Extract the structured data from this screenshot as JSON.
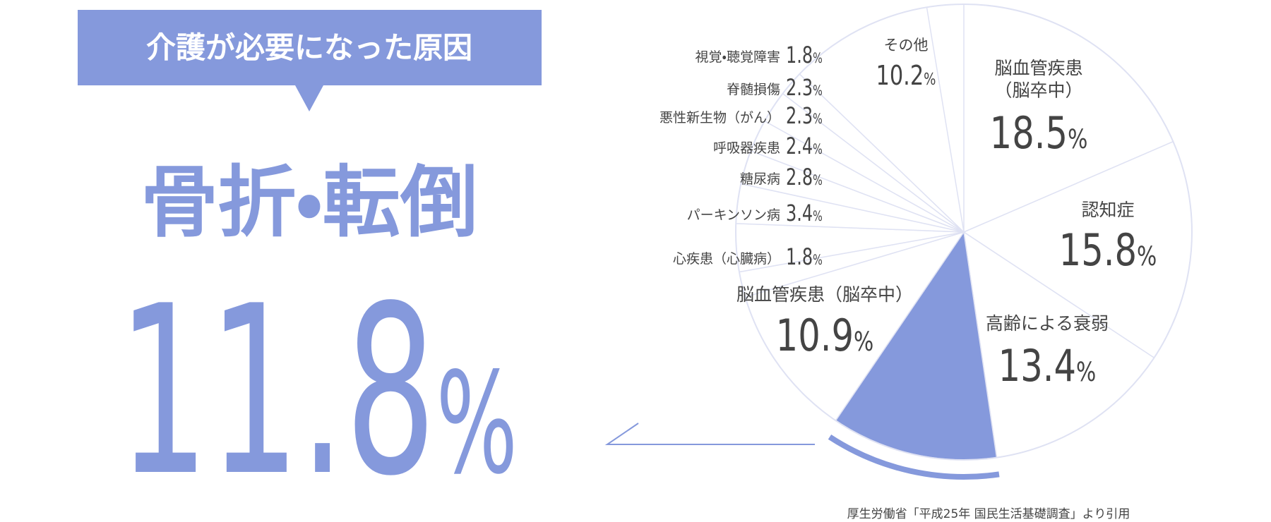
{
  "chart_data": {
    "type": "pie",
    "title": "介護が必要になった原因",
    "source": "厚生労働省「平成25年 国民生活基礎調査」より引用",
    "categories": [
      "脳血管疾患（脳卒中）",
      "認知症",
      "高齢による衰弱",
      "骨折・転倒",
      "脳血管疾患（脳卒中）",
      "心疾患（心臓病）",
      "パーキンソン病",
      "糖尿病",
      "呼吸器疾患",
      "悪性新生物（がん）",
      "脊髄損傷",
      "視覚・聴覚障害",
      "その他"
    ],
    "values": [
      18.5,
      15.8,
      13.4,
      11.8,
      10.9,
      1.8,
      3.4,
      2.8,
      2.4,
      2.3,
      2.3,
      1.8,
      10.2
    ],
    "value_labels": [
      "18.5%",
      "15.8%",
      "13.4%",
      "11.8%",
      "10.9%",
      "1.8%",
      "3.4%",
      "2.8%",
      "2.4%",
      "2.3%",
      "2.3%",
      "1.8%",
      "10.2%"
    ],
    "highlight": 3,
    "color": "#ffffff",
    "highlight_color": "#8599dc",
    "edge_color": "#dfe2f3"
  }
}
